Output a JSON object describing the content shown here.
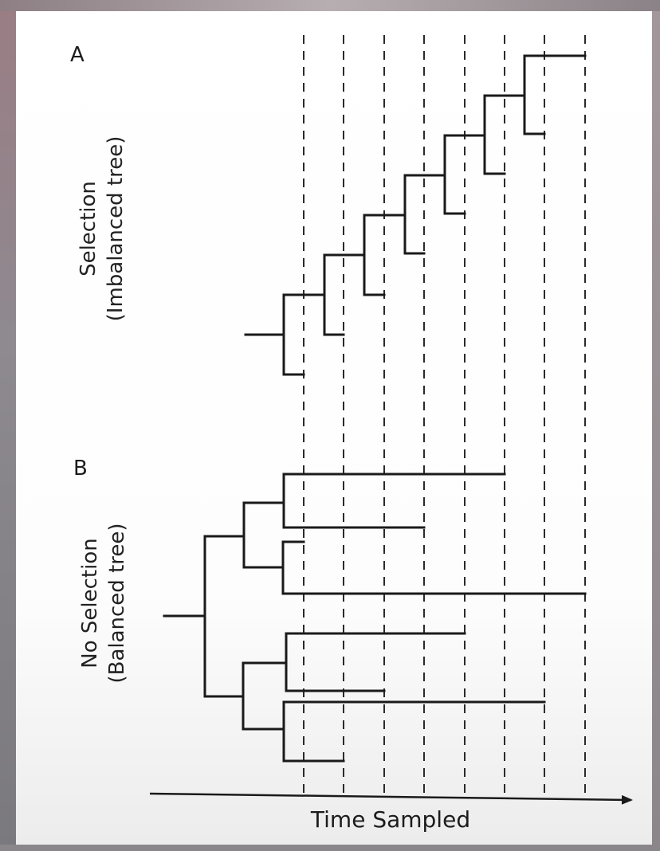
{
  "panel_a": {
    "letter": "A",
    "label_line1": "Selection",
    "label_line2": "(Imbalanced tree)"
  },
  "panel_b": {
    "letter": "B",
    "label_line1": "No Selection",
    "label_line2": "(Balanced tree)"
  },
  "x_axis": {
    "label": "Time Sampled",
    "sample_times": 8
  },
  "colors": {
    "line": "#1a1a1a",
    "figure_background": "#ffffff",
    "frame_background": "#6f6a6e"
  }
}
